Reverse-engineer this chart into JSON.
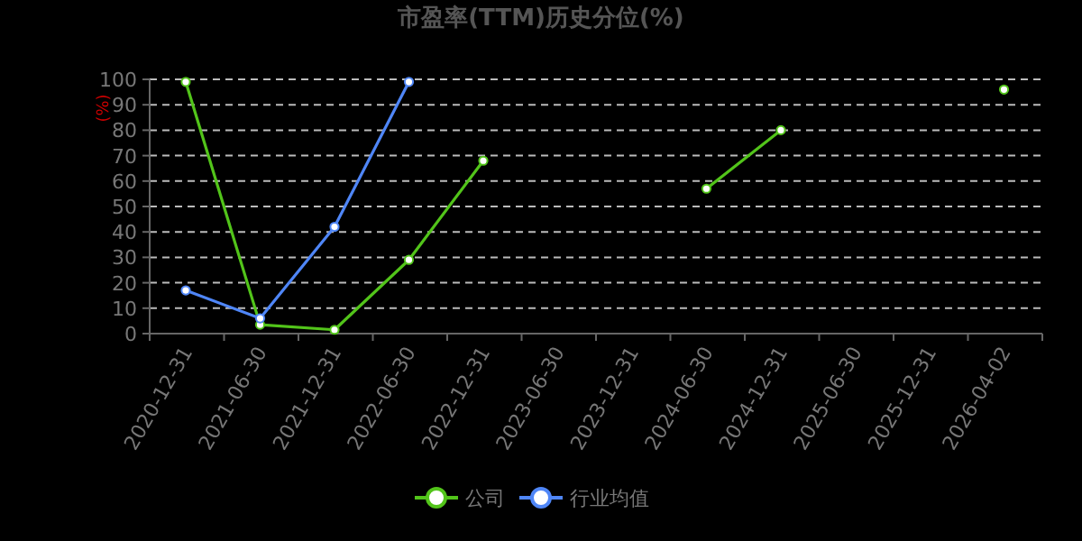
{
  "chart_data": {
    "type": "line",
    "title": "市盈率(TTM)历史分位(%)",
    "ylabel": "(%)",
    "categories": [
      "2020-12-31",
      "2021-06-30",
      "2021-12-31",
      "2022-06-30",
      "2022-12-31",
      "2023-06-30",
      "2023-12-31",
      "2024-06-30",
      "2024-12-31",
      "2025-06-30",
      "2025-12-31",
      "2026-04-02"
    ],
    "series": [
      {
        "name": "公司",
        "color": "#52c41a",
        "values": [
          99,
          3.5,
          1.5,
          29,
          68,
          null,
          null,
          57,
          80,
          null,
          null,
          96
        ]
      },
      {
        "name": "行业均值",
        "color": "#4f86f7",
        "values": [
          17,
          6,
          42,
          99,
          null,
          null,
          null,
          null,
          null,
          null,
          null,
          null
        ]
      }
    ],
    "ylim": [
      0,
      100
    ],
    "yticks": [
      0,
      10,
      20,
      30,
      40,
      50,
      60,
      70,
      80,
      90,
      100
    ],
    "grid": "y",
    "legend": "bottom",
    "marker": "circle"
  }
}
